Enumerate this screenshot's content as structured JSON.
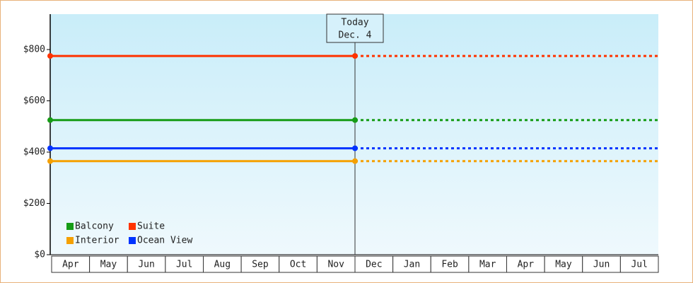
{
  "chart_data": {
    "type": "line",
    "annotation": [
      "Today",
      "Dec. 4"
    ],
    "categories": [
      "Apr",
      "May",
      "Jun",
      "Jul",
      "Aug",
      "Sep",
      "Oct",
      "Nov",
      "Dec",
      "Jan",
      "Feb",
      "Mar",
      "Apr",
      "May",
      "Jun",
      "Jul"
    ],
    "series": [
      {
        "name": "Balcony",
        "color": "#169c16",
        "values": [
          525,
          525,
          525,
          525,
          525,
          525,
          525,
          525,
          525,
          null,
          null,
          null,
          null,
          null,
          null,
          null
        ],
        "projected": [
          null,
          null,
          null,
          null,
          null,
          null,
          null,
          null,
          525,
          525,
          525,
          525,
          525,
          525,
          525,
          525
        ]
      },
      {
        "name": "Suite",
        "color": "#ff3300",
        "values": [
          775,
          775,
          775,
          775,
          775,
          775,
          775,
          775,
          775,
          null,
          null,
          null,
          null,
          null,
          null,
          null
        ],
        "projected": [
          null,
          null,
          null,
          null,
          null,
          null,
          null,
          null,
          775,
          775,
          775,
          775,
          775,
          775,
          775,
          775
        ]
      },
      {
        "name": "Interior",
        "color": "#f5a000",
        "values": [
          365,
          365,
          365,
          365,
          365,
          365,
          365,
          365,
          365,
          null,
          null,
          null,
          null,
          null,
          null,
          null
        ],
        "projected": [
          null,
          null,
          null,
          null,
          null,
          null,
          null,
          null,
          365,
          365,
          365,
          365,
          365,
          365,
          365,
          365
        ]
      },
      {
        "name": "Ocean View",
        "color": "#0033ff",
        "values": [
          415,
          415,
          415,
          415,
          415,
          415,
          415,
          415,
          415,
          null,
          null,
          null,
          null,
          null,
          null,
          null
        ],
        "projected": [
          null,
          null,
          null,
          null,
          null,
          null,
          null,
          null,
          415,
          415,
          415,
          415,
          415,
          415,
          415,
          415
        ]
      }
    ],
    "ylim": [
      0,
      938
    ],
    "yticks": [
      {
        "value": 0,
        "label": "$0"
      },
      {
        "value": 200,
        "label": "$200"
      },
      {
        "value": 400,
        "label": "$400"
      },
      {
        "value": 600,
        "label": "$600"
      },
      {
        "value": 800,
        "label": "$800"
      }
    ],
    "grid": false
  }
}
